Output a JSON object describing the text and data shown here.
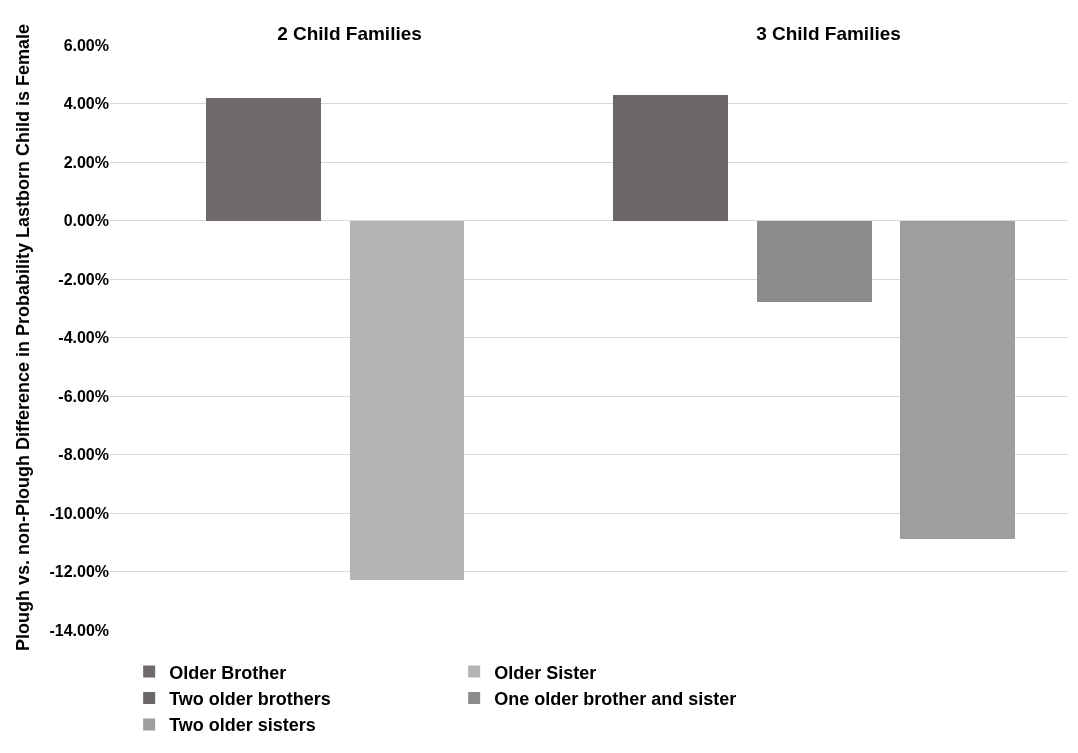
{
  "chart_data": {
    "type": "bar",
    "categories": [
      "2 Child Families",
      "3 Child Families"
    ],
    "ylabel": "Plough vs. non-Plough Difference in Probability Lastborn Child is Female",
    "series": [
      {
        "name": "Older Brother",
        "color": "#6e6a6a",
        "values": [
          4.2,
          null
        ]
      },
      {
        "name": "Older Sister",
        "color": "#b4b4b4",
        "values": [
          -12.3,
          null
        ]
      },
      {
        "name": "Two older brothers",
        "color": "#6b6767",
        "values": [
          null,
          4.3
        ]
      },
      {
        "name": "One older brother and sister",
        "color": "#8c8c8c",
        "values": [
          null,
          -2.8
        ]
      },
      {
        "name": "Two older sisters",
        "color": "#9e9e9e",
        "values": [
          null,
          -10.9
        ]
      }
    ],
    "ylim": [
      -14,
      6
    ],
    "yticks": [
      {
        "value": -14,
        "label": "-14.00%"
      },
      {
        "value": -12,
        "label": "-12.00%"
      },
      {
        "value": -10,
        "label": "-10.00%"
      },
      {
        "value": -8,
        "label": "-8.00%"
      },
      {
        "value": -6,
        "label": "-6.00%"
      },
      {
        "value": -4,
        "label": "-4.00%"
      },
      {
        "value": -2,
        "label": "-2.00%"
      },
      {
        "value": 0,
        "label": "0.00%"
      },
      {
        "value": 2,
        "label": "2.00%"
      },
      {
        "value": 4,
        "label": "4.00%"
      },
      {
        "value": 6,
        "label": "6.00%"
      }
    ],
    "grid": "y",
    "legend": "bottom"
  }
}
